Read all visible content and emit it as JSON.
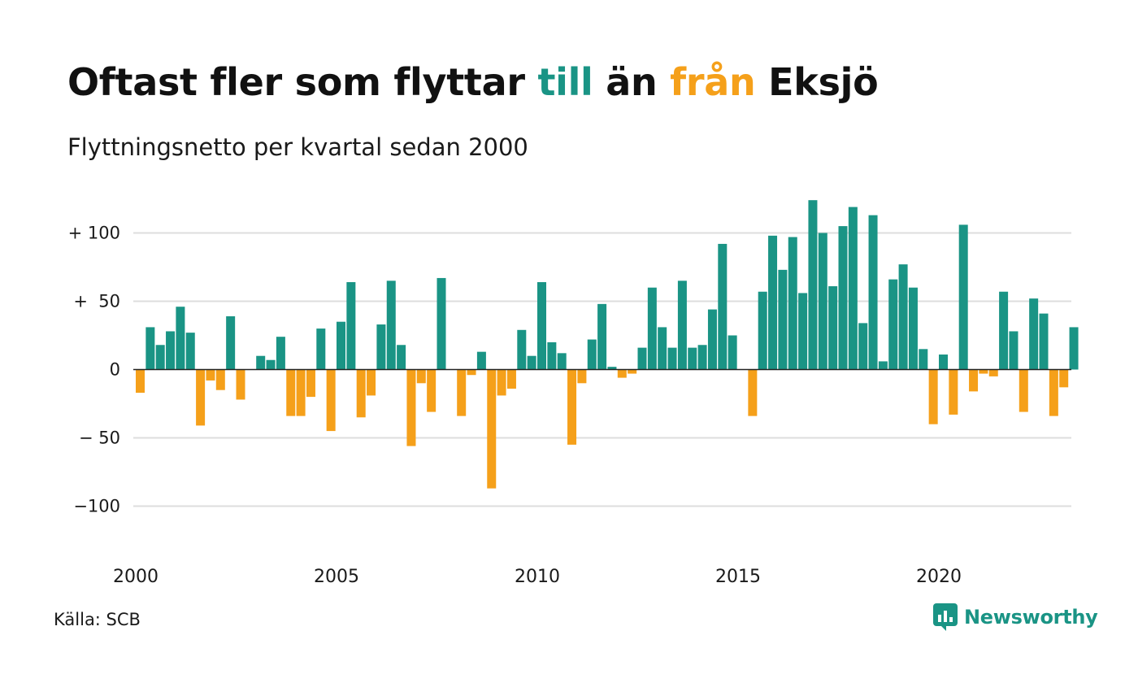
{
  "title": {
    "part1": "Oftast fler som flyttar ",
    "pos_word": "till",
    "part2": " än ",
    "neg_word": "från",
    "part3": " Eksjö"
  },
  "subtitle": "Flyttningsnetto per kvartal sedan 2000",
  "source": "Källa: SCB",
  "brand": {
    "name": "Newsworthy",
    "icon": "newsworthy-logo-icon"
  },
  "colors": {
    "positive": "#1a9485",
    "negative": "#f5a01a",
    "grid": "#dddddd",
    "text": "#1a1a1a"
  },
  "chart_data": {
    "type": "bar",
    "title": "Oftast fler som flyttar till än från Eksjö",
    "subtitle": "Flyttningsnetto per kvartal sedan 2000",
    "x_start": "2000 Q1",
    "x_ticks": [
      "2000",
      "2005",
      "2010",
      "2015",
      "2020"
    ],
    "y_ticks": [
      {
        "value": 100,
        "label": "+ 100"
      },
      {
        "value": 50,
        "label": "+  50"
      },
      {
        "value": 0,
        "label": "0"
      },
      {
        "value": -50,
        "label": "− 50"
      },
      {
        "value": -100,
        "label": "−100"
      }
    ],
    "ylim": [
      -140,
      130
    ],
    "grid": true,
    "legend": "none",
    "values": [
      -17,
      31,
      18,
      28,
      46,
      27,
      -41,
      -8,
      -15,
      39,
      -22,
      0,
      10,
      7,
      24,
      -34,
      -34,
      -20,
      30,
      -45,
      35,
      64,
      -35,
      -19,
      33,
      65,
      18,
      -56,
      -10,
      -31,
      67,
      0,
      -34,
      -4,
      13,
      -87,
      -19,
      -14,
      29,
      10,
      64,
      20,
      12,
      -55,
      -10,
      22,
      48,
      2,
      -6,
      -3,
      16,
      60,
      31,
      16,
      65,
      16,
      18,
      44,
      92,
      25,
      0,
      -34,
      57,
      98,
      73,
      97,
      56,
      124,
      100,
      61,
      105,
      119,
      34,
      113,
      6,
      66,
      77,
      60,
      15,
      -40,
      11,
      -33,
      106,
      -16,
      -3,
      -5,
      57,
      28,
      -31,
      52,
      41,
      -34,
      -13,
      31
    ]
  }
}
